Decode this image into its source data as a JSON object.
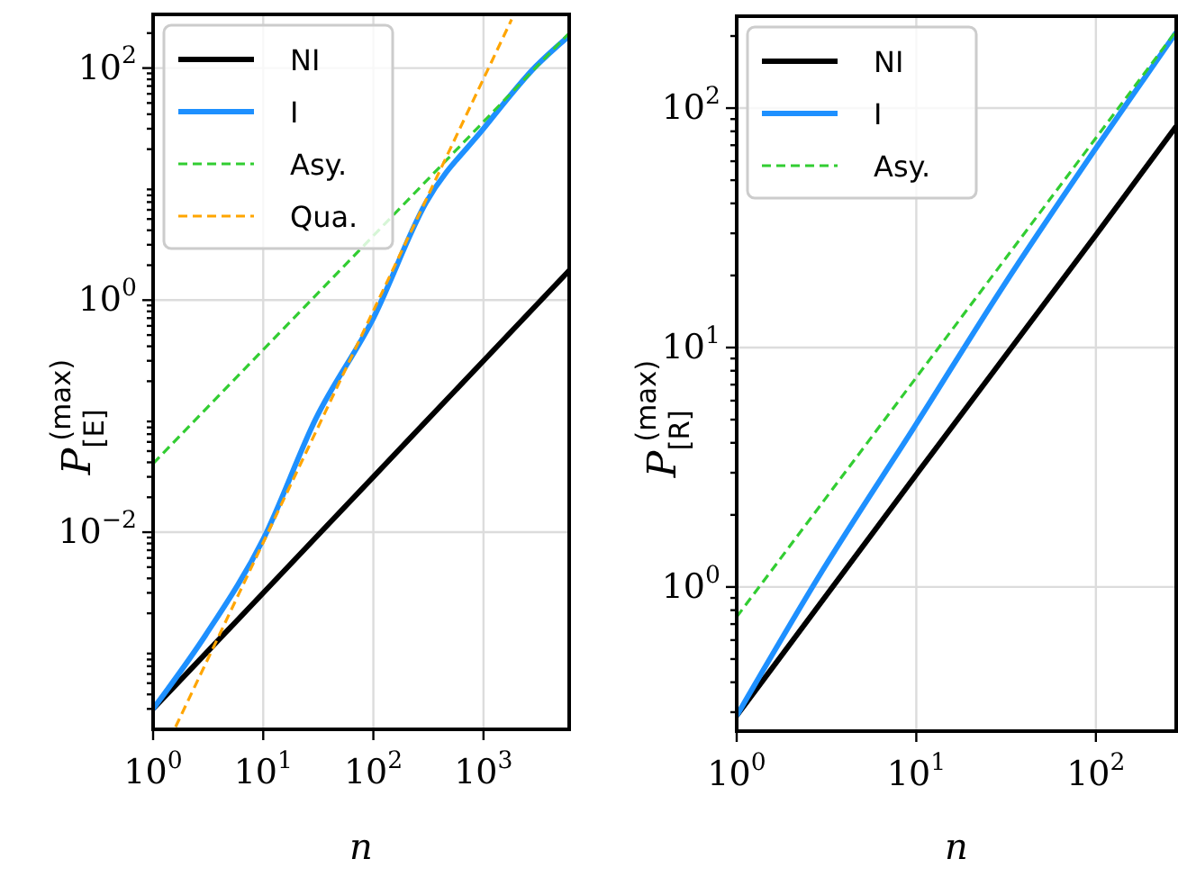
{
  "chart_data": [
    {
      "type": "line",
      "xlabel": "n",
      "ylabel": "P$_{[E]}$$^{(max)}$",
      "log": "xy",
      "grid": true,
      "legend": "top left",
      "xlim": [
        1,
        6000
      ],
      "ylim": [
        0.0002,
        290
      ],
      "xticks": [
        {
          "value": 1,
          "label": "10$^{0}$"
        },
        {
          "value": 10,
          "label": "10$^{1}$"
        },
        {
          "value": 100,
          "label": "10$^{2}$"
        },
        {
          "value": 1000,
          "label": "10$^{3}$"
        }
      ],
      "yticks": [
        {
          "value": 0.0003,
          "label": null
        },
        {
          "value": 0.0004,
          "label": null
        },
        {
          "value": 0.0005,
          "label": null
        },
        {
          "value": 0.0006,
          "label": null
        },
        {
          "value": 0.0007,
          "label": null
        },
        {
          "value": 0.0008,
          "label": null
        },
        {
          "value": 0.0009,
          "label": null
        },
        {
          "value": 0.002,
          "label": null
        },
        {
          "value": 0.003,
          "label": null
        },
        {
          "value": 0.004,
          "label": null
        },
        {
          "value": 0.005,
          "label": null
        },
        {
          "value": 0.006,
          "label": null
        },
        {
          "value": 0.007,
          "label": null
        },
        {
          "value": 0.008,
          "label": null
        },
        {
          "value": 0.009,
          "label": null
        },
        {
          "value": 0.01,
          "label": "10$^{−2}$"
        },
        {
          "value": 0.02,
          "label": null
        },
        {
          "value": 0.03,
          "label": null
        },
        {
          "value": 0.04,
          "label": null
        },
        {
          "value": 0.05,
          "label": null
        },
        {
          "value": 0.06,
          "label": null
        },
        {
          "value": 0.07,
          "label": null
        },
        {
          "value": 0.08,
          "label": null
        },
        {
          "value": 0.09,
          "label": null
        },
        {
          "value": 0.2,
          "label": null
        },
        {
          "value": 0.3,
          "label": null
        },
        {
          "value": 0.4,
          "label": null
        },
        {
          "value": 0.5,
          "label": null
        },
        {
          "value": 0.6,
          "label": null
        },
        {
          "value": 0.7,
          "label": null
        },
        {
          "value": 0.8,
          "label": null
        },
        {
          "value": 0.9,
          "label": null
        },
        {
          "value": 1,
          "label": "10$^{0}$"
        },
        {
          "value": 2,
          "label": null
        },
        {
          "value": 3,
          "label": null
        },
        {
          "value": 4,
          "label": null
        },
        {
          "value": 5,
          "label": null
        },
        {
          "value": 6,
          "label": null
        },
        {
          "value": 7,
          "label": null
        },
        {
          "value": 8,
          "label": null
        },
        {
          "value": 9,
          "label": null
        },
        {
          "value": 20,
          "label": null
        },
        {
          "value": 30,
          "label": null
        },
        {
          "value": 40,
          "label": null
        },
        {
          "value": 50,
          "label": null
        },
        {
          "value": 60,
          "label": null
        },
        {
          "value": 70,
          "label": null
        },
        {
          "value": 80,
          "label": null
        },
        {
          "value": 90,
          "label": null
        },
        {
          "value": 100,
          "label": "10$^{2}$"
        },
        {
          "value": 200,
          "label": null
        }
      ],
      "series": [
        {
          "name": "NI",
          "color": "#000000",
          "line_style": "solid",
          "x": [
            1,
            10,
            100,
            1000,
            6000
          ],
          "values": [
            0.0003,
            0.003,
            0.03,
            0.3,
            1.8
          ]
        },
        {
          "name": "I",
          "color": "#1e90ff",
          "line_style": "solid",
          "x": [
            1,
            3,
            10,
            30,
            100,
            300,
            1000,
            3000,
            6000
          ],
          "values": [
            0.0003,
            0.0013,
            0.0087,
            0.095,
            0.7,
            6.9,
            30,
            104,
            190
          ]
        },
        {
          "name": "Asy.",
          "color": "#32cd32",
          "line_style": "dashed",
          "x": [
            1,
            6000
          ],
          "values": [
            0.039,
            200
          ]
        },
        {
          "name": "Qua.",
          "color": "#ffa500",
          "line_style": "dashed",
          "x": [
            1.6,
            100,
            1800
          ],
          "values": [
            0.00021,
            0.81,
            262
          ]
        }
      ]
    },
    {
      "type": "line",
      "xlabel": "n",
      "ylabel": "P$_{[R]}$$^{(max)}$",
      "log": "xy",
      "grid": true,
      "legend": "top left",
      "xlim": [
        1,
        280
      ],
      "ylim": [
        0.25,
        242
      ],
      "xticks": [
        {
          "value": 1,
          "label": "10$^{0}$"
        },
        {
          "value": 10,
          "label": "10$^{1}$"
        },
        {
          "value": 100,
          "label": "10$^{2}$"
        }
      ],
      "yticks": [
        {
          "value": 0.3,
          "label": null
        },
        {
          "value": 0.4,
          "label": null
        },
        {
          "value": 0.5,
          "label": null
        },
        {
          "value": 0.6,
          "label": null
        },
        {
          "value": 0.7,
          "label": null
        },
        {
          "value": 0.8,
          "label": null
        },
        {
          "value": 0.9,
          "label": null
        },
        {
          "value": 1,
          "label": "10$^{0}$"
        },
        {
          "value": 2,
          "label": null
        },
        {
          "value": 3,
          "label": null
        },
        {
          "value": 4,
          "label": null
        },
        {
          "value": 5,
          "label": null
        },
        {
          "value": 6,
          "label": null
        },
        {
          "value": 7,
          "label": null
        },
        {
          "value": 8,
          "label": null
        },
        {
          "value": 9,
          "label": null
        },
        {
          "value": 10,
          "label": "10$^{1}$"
        },
        {
          "value": 20,
          "label": null
        },
        {
          "value": 30,
          "label": null
        },
        {
          "value": 40,
          "label": null
        },
        {
          "value": 50,
          "label": null
        },
        {
          "value": 60,
          "label": null
        },
        {
          "value": 70,
          "label": null
        },
        {
          "value": 80,
          "label": null
        },
        {
          "value": 90,
          "label": null
        },
        {
          "value": 100,
          "label": "10$^{2}$"
        },
        {
          "value": 200,
          "label": null
        }
      ],
      "series": [
        {
          "name": "NI",
          "color": "#000000",
          "line_style": "solid",
          "x": [
            1,
            10,
            100,
            280
          ],
          "values": [
            0.29,
            2.95,
            29.5,
            84
          ]
        },
        {
          "name": "I",
          "color": "#1e90ff",
          "line_style": "solid",
          "x": [
            1,
            3,
            10,
            30,
            100,
            280
          ],
          "values": [
            0.29,
            1.17,
            4.8,
            17.7,
            68,
            207
          ]
        },
        {
          "name": "Asy.",
          "color": "#32cd32",
          "line_style": "dashed",
          "x": [
            1,
            280
          ],
          "values": [
            0.75,
            210
          ]
        }
      ]
    }
  ]
}
